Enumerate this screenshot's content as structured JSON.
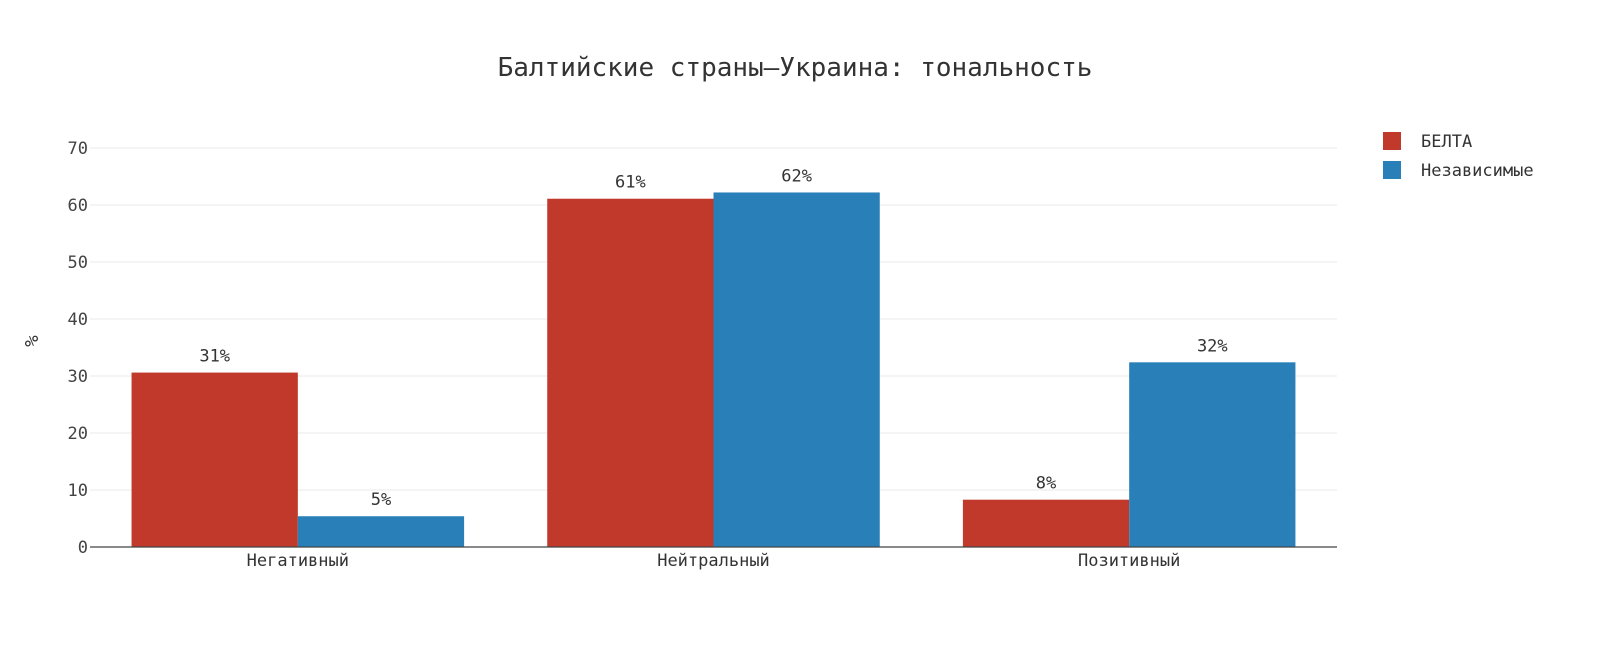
{
  "chart_data": {
    "type": "bar",
    "title": "Балтийские страны–Украина: тональность",
    "xlabel": "",
    "ylabel": "%",
    "categories": [
      "Негативный",
      "Нейтральный",
      "Позитивный"
    ],
    "series": [
      {
        "name": "БЕЛТА",
        "color": "#c0392b",
        "values": [
          30.6,
          61.1,
          8.3
        ],
        "labels": [
          "31%",
          "61%",
          "8%"
        ]
      },
      {
        "name": "Независимые",
        "color": "#2980b9",
        "values": [
          5.4,
          62.2,
          32.4
        ],
        "labels": [
          "5%",
          "62%",
          "32%"
        ]
      }
    ],
    "ylim": [
      0,
      70
    ],
    "yticks": [
      0,
      10,
      20,
      30,
      40,
      50,
      60,
      70
    ],
    "grid": true,
    "legend": "top-right"
  }
}
